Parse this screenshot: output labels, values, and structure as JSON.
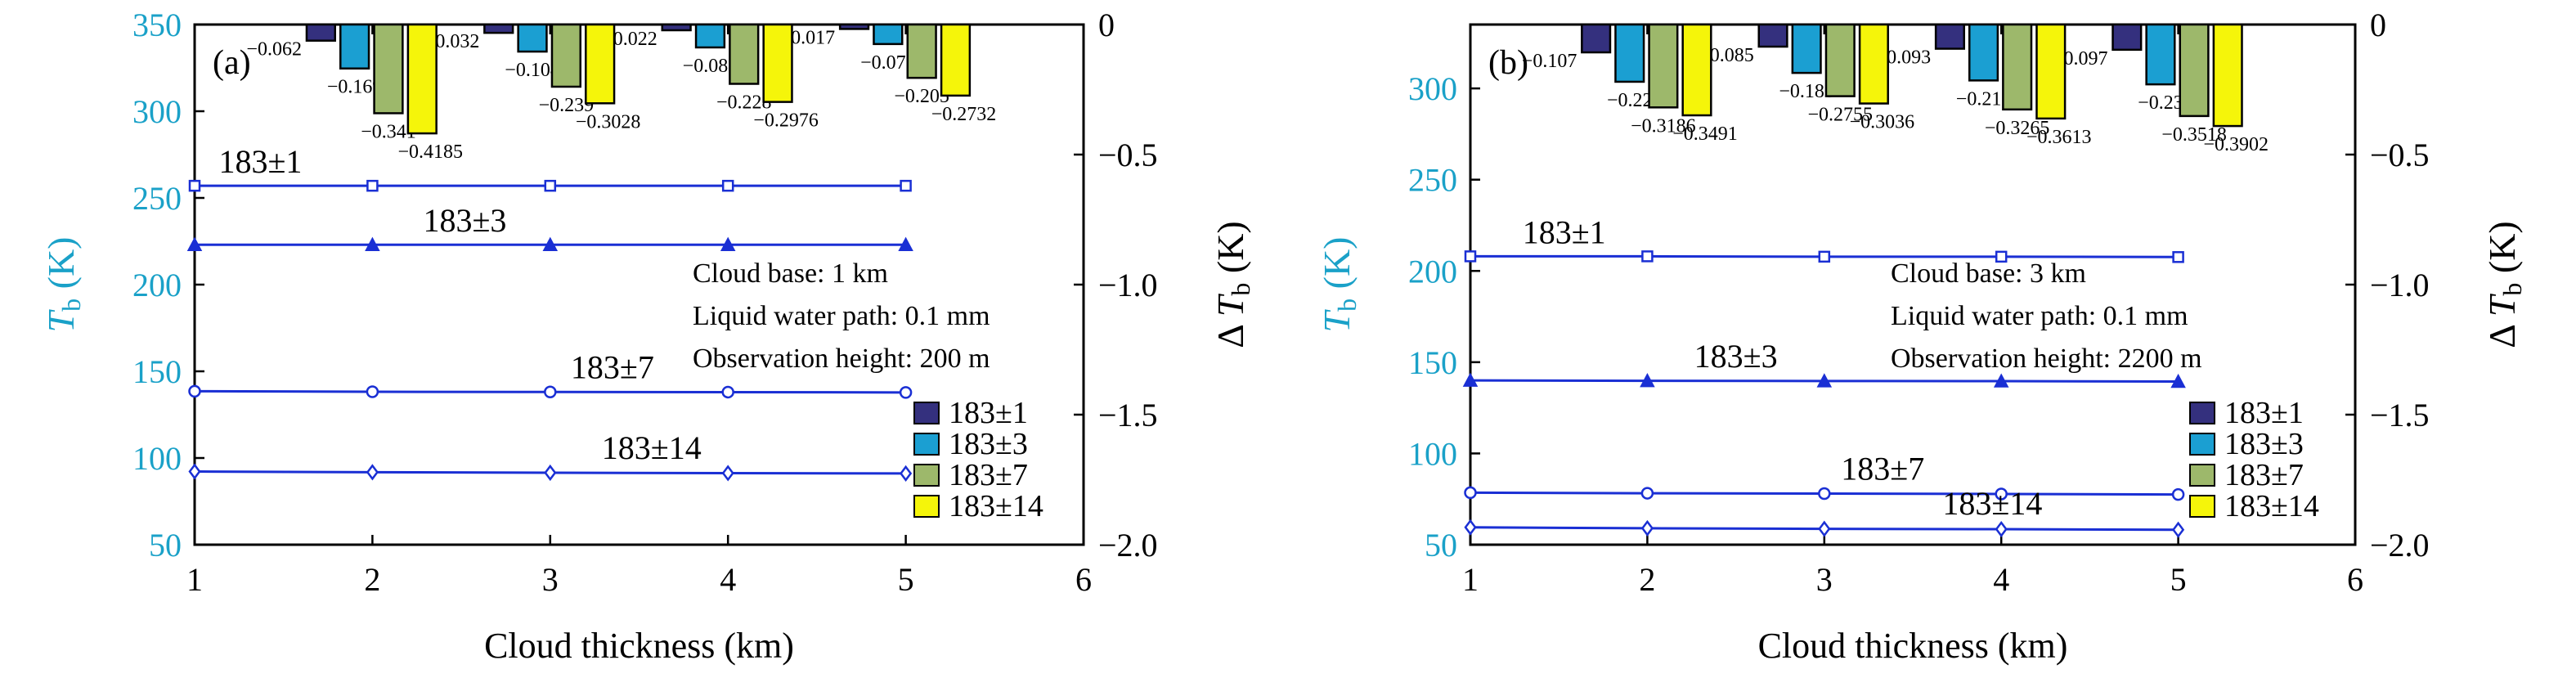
{
  "colors": {
    "left_axis": "#1aa1c8",
    "right_axis": "#000000",
    "line": "#1a2fd4",
    "bar_1": "#34307e",
    "bar_3": "#1b9fd2",
    "bar_7": "#9db86b",
    "bar_14": "#f5f50a"
  },
  "chart_data": [
    {
      "type": "bar+line",
      "panel_label": "(a)",
      "xlabel": "Cloud thickness (km)",
      "ylabel_left": "T_b (K)",
      "ylabel_right": "ΔT_b (K)",
      "x_ticks": [
        "1",
        "2",
        "3",
        "4",
        "5",
        "6"
      ],
      "xlim": [
        1,
        6
      ],
      "ylim_left": [
        50,
        350
      ],
      "y_ticks_left": [
        "50",
        "100",
        "150",
        "200",
        "250",
        "300",
        "350"
      ],
      "ylim_right": [
        -2.0,
        0
      ],
      "y_ticks_right": [
        "−2.0",
        "−1.5",
        "−1.0",
        "−0.5",
        "0"
      ],
      "annotations": [
        "Cloud base: 1 km",
        "Liquid water path: 0.1 mm",
        "Observation height: 200 m"
      ],
      "x": [
        1,
        2,
        3,
        4,
        5
      ],
      "line_series": [
        {
          "name": "183±1",
          "marker": "square",
          "values": [
            257,
            257,
            257,
            257,
            257
          ]
        },
        {
          "name": "183±3",
          "marker": "triangle",
          "values": [
            223,
            223,
            223,
            223,
            223
          ]
        },
        {
          "name": "183±7",
          "marker": "circle",
          "values": [
            138.5,
            138.2,
            138.1,
            138.0,
            137.8
          ]
        },
        {
          "name": "183±14",
          "marker": "diamond",
          "values": [
            92.2,
            91.8,
            91.5,
            91.3,
            91.1
          ]
        }
      ],
      "bar_categories": [
        "2",
        "3",
        "4",
        "5"
      ],
      "bar_series": [
        {
          "name": "183±1",
          "values": [
            -0.062,
            -0.032,
            -0.022,
            -0.017
          ],
          "labels": [
            "−0.062",
            "−0.032",
            "−0.022",
            "−0.017"
          ]
        },
        {
          "name": "183±3",
          "values": [
            -0.169,
            -0.104,
            -0.088,
            -0.075
          ],
          "labels": [
            "−0.169",
            "−0.104",
            "−0.088",
            "−0.075"
          ]
        },
        {
          "name": "183±7",
          "values": [
            -0.341,
            -0.239,
            -0.228,
            -0.205
          ],
          "labels": [
            "−0.341",
            "−0.239",
            "−0.228",
            "−0.205"
          ]
        },
        {
          "name": "183±14",
          "values": [
            -0.4185,
            -0.3028,
            -0.2976,
            -0.2732
          ],
          "labels": [
            "−0.4185",
            "−0.3028",
            "−0.2976",
            "−0.2732"
          ]
        }
      ],
      "legend": [
        "183±1",
        "183±3",
        "183±7",
        "183±14"
      ]
    },
    {
      "type": "bar+line",
      "panel_label": "(b)",
      "xlabel": "Cloud thickness (km)",
      "ylabel_left": "T_b (K)",
      "ylabel_right": "ΔT_b (K)",
      "x_ticks": [
        "1",
        "2",
        "3",
        "4",
        "5",
        "6"
      ],
      "xlim": [
        1,
        6
      ],
      "ylim_left": [
        50,
        335
      ],
      "y_ticks_left": [
        "50",
        "100",
        "150",
        "200",
        "250",
        "300"
      ],
      "ylim_right": [
        -2.0,
        0
      ],
      "y_ticks_right": [
        "−2.0",
        "−1.5",
        "−1.0",
        "−0.5",
        "0"
      ],
      "annotations": [
        "Cloud base: 3 km",
        "Liquid water path: 0.1 mm",
        "Observation height: 2200 m"
      ],
      "x": [
        1,
        2,
        3,
        4,
        5
      ],
      "line_series": [
        {
          "name": "183±1",
          "marker": "square",
          "values": [
            208,
            208,
            207.8,
            207.8,
            207.6
          ]
        },
        {
          "name": "183±3",
          "marker": "triangle",
          "values": [
            140,
            139.8,
            139.7,
            139.6,
            139.4
          ]
        },
        {
          "name": "183±7",
          "marker": "circle",
          "values": [
            78.5,
            78.2,
            78.0,
            77.8,
            77.5
          ]
        },
        {
          "name": "183±14",
          "marker": "diamond",
          "values": [
            59.5,
            59.0,
            58.7,
            58.5,
            58.2
          ]
        }
      ],
      "bar_categories": [
        "2",
        "3",
        "4",
        "5"
      ],
      "bar_series": [
        {
          "name": "183±1",
          "values": [
            -0.107,
            -0.085,
            -0.093,
            -0.097
          ],
          "labels": [
            "−0.107",
            "−0.085",
            "−0.093",
            "−0.097"
          ]
        },
        {
          "name": "183±3",
          "values": [
            -0.22,
            -0.186,
            -0.215,
            -0.23
          ],
          "labels": [
            "−0.22",
            "−0.186",
            "−0.215",
            "−0.23"
          ]
        },
        {
          "name": "183±7",
          "values": [
            -0.3186,
            -0.2755,
            -0.3265,
            -0.3518
          ],
          "labels": [
            "−0.3186",
            "−0.2755",
            "−0.3265",
            "−0.3518"
          ]
        },
        {
          "name": "183±14",
          "values": [
            -0.3491,
            -0.3036,
            -0.3613,
            -0.3902
          ],
          "labels": [
            "−0.3491",
            "−0.3036",
            "−0.3613",
            "−0.3902"
          ]
        }
      ],
      "legend": [
        "183±1",
        "183±3",
        "183±7",
        "183±14"
      ]
    }
  ]
}
